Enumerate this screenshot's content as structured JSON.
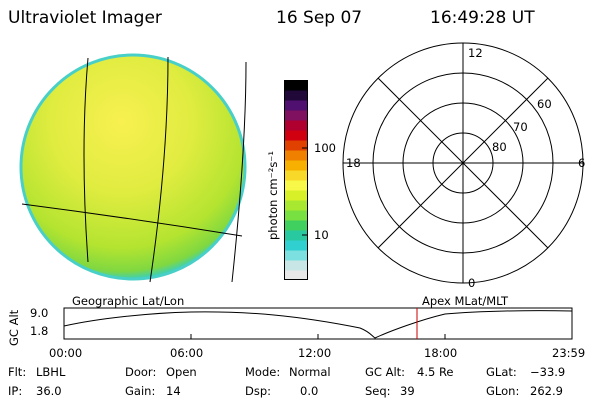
{
  "header": {
    "instrument": "Ultraviolet Imager",
    "date": "16 Sep 07",
    "time": "16:49:28 UT"
  },
  "colorbar": {
    "unit_label": "photon cm⁻²s⁻¹",
    "tick_100": "100",
    "tick_10": "10",
    "colors": [
      "#e8e8e8",
      "#c8e6e6",
      "#7ce0e0",
      "#30d0d0",
      "#28c8a0",
      "#40d060",
      "#78e040",
      "#a8e830",
      "#d8f028",
      "#f8f848",
      "#f8d828",
      "#f8b000",
      "#f08000",
      "#e04000",
      "#d00010",
      "#b00030",
      "#801060",
      "#501070",
      "#200838",
      "#000000"
    ]
  },
  "polar": {
    "mlt_top": "12",
    "mlt_right": "6",
    "mlt_bottom": "0",
    "mlt_left": "18",
    "lat_60": "60",
    "lat_70": "70",
    "lat_80": "80"
  },
  "orbit": {
    "left_label": "Geographic Lat/Lon",
    "right_label": "Apex MLat/MLT",
    "yaxis_label": "GC Alt",
    "y_tick_high": "9.0",
    "y_tick_low": "1.8",
    "x_ticks": [
      "00:00",
      "06:00",
      "12:00",
      "18:00",
      "23:59"
    ],
    "marker_color": "#cc0000"
  },
  "status": {
    "flt_label": "Flt:",
    "flt_value": "LBHL",
    "ip_label": "IP:",
    "ip_value": "36.0",
    "door_label": "Door:",
    "door_value": "Open",
    "gain_label": "Gain:",
    "gain_value": "14",
    "mode_label": "Mode:",
    "mode_value": "Normal",
    "dsp_label": "Dsp:",
    "dsp_value": "0.0",
    "gcalt_label": "GC Alt:",
    "gcalt_value": "4.5 Re",
    "seq_label": "Seq:",
    "seq_value": "39",
    "glat_label": "GLat:",
    "glat_value": "−33.9",
    "glon_label": "GLon:",
    "glon_value": "262.9"
  }
}
